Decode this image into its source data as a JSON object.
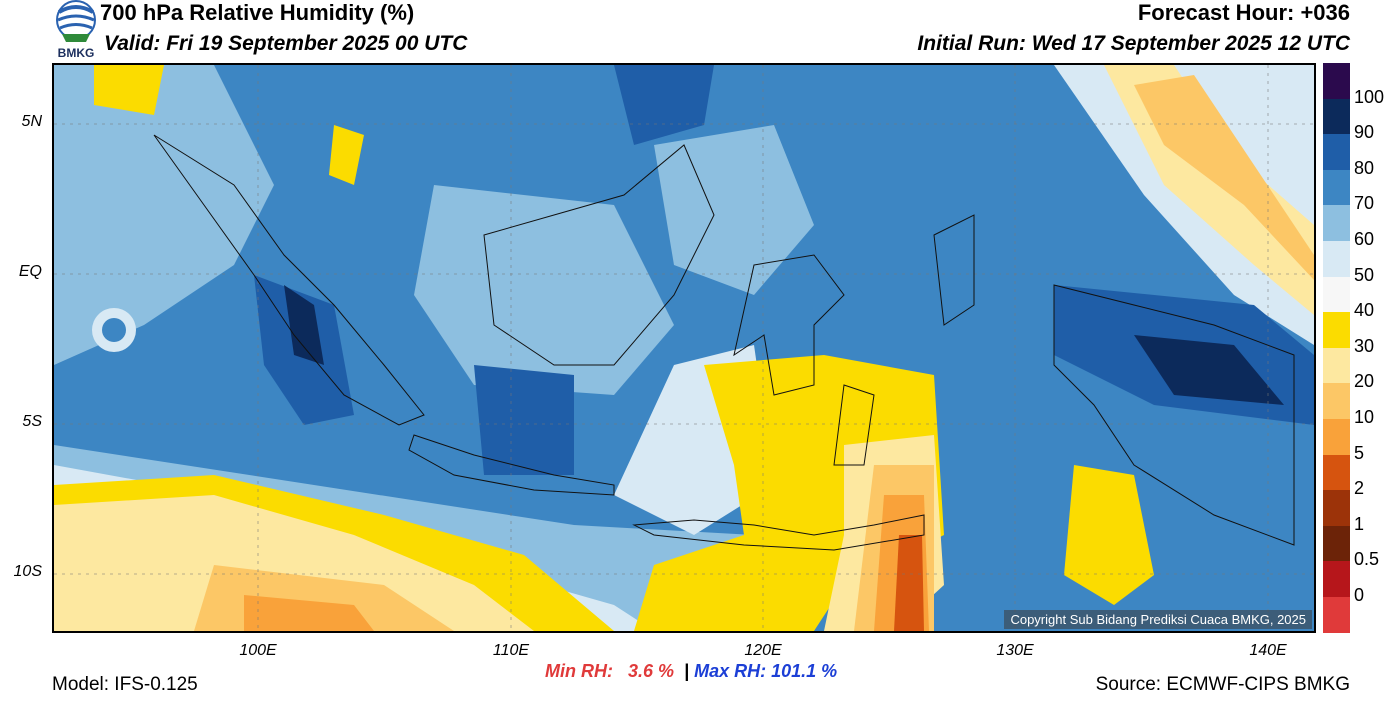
{
  "header": {
    "title": "700 hPa Relative Humidity (%)",
    "valid": "Valid: Fri 19 September 2025 00 UTC",
    "forecast_hour": "Forecast Hour: +036",
    "initial_run": "Initial Run: Wed 17 September 2025 12 UTC",
    "logo_text": "BMKG"
  },
  "axes": {
    "lat_labels": [
      "5N",
      "EQ",
      "5S",
      "10S"
    ],
    "lon_labels": [
      "100E",
      "110E",
      "120E",
      "130E",
      "140E"
    ]
  },
  "colorbar": {
    "labels": [
      "100",
      "90",
      "80",
      "70",
      "60",
      "50",
      "40",
      "30",
      "20",
      "10",
      "5",
      "2",
      "1",
      "0.5",
      "0"
    ],
    "colors": [
      "#2b0a4d",
      "#0c2a5b",
      "#1f5ea8",
      "#3d86c3",
      "#8dbfe0",
      "#d8e9f4",
      "#f7f7f7",
      "#fbdc00",
      "#fde8a0",
      "#fcc766",
      "#f9a23a",
      "#d6540f",
      "#9c3309",
      "#6c2308",
      "#b6161b",
      "#e03a3a"
    ]
  },
  "footer": {
    "min_label": "Min RH:",
    "min_value": "3.6 %",
    "sep": "|",
    "max_label": "Max RH:",
    "max_value": "101.1 %",
    "model": "Model: IFS-0.125",
    "source": "Source: ECMWF-CIPS BMKG",
    "copyright": "Copyright Sub Bidang Prediksi Cuaca BMKG, 2025"
  }
}
